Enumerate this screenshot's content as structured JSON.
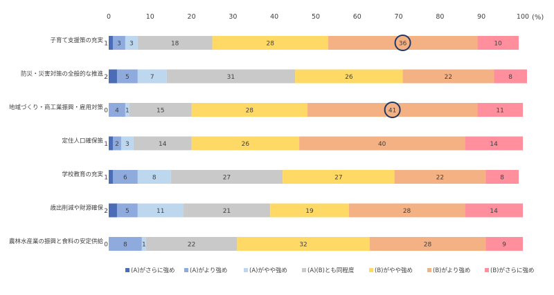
{
  "chart_data": {
    "type": "bar",
    "orientation": "horizontal",
    "stacked": true,
    "unit_label": "(%)",
    "xlim": [
      0,
      100
    ],
    "x_ticks": [
      0,
      10,
      20,
      30,
      40,
      50,
      60,
      70,
      80,
      90,
      100
    ],
    "grid": false,
    "legend_position": "bottom",
    "categories": [
      "子育て支援策の充実",
      "防災・災害対策の全般的な推進",
      "地域づくり・商工業振興・雇用対策",
      "定住人口確保策",
      "学校教育の充実",
      "歳出削減や財源確保",
      "農林水産業の振興と食料の安定供給"
    ],
    "series": [
      {
        "name": "(A)がさらに強め",
        "color": "#4a6db5",
        "values": [
          1,
          2,
          0,
          1,
          1,
          2,
          0
        ]
      },
      {
        "name": "(A)がより強め",
        "color": "#8faadc",
        "values": [
          3,
          5,
          4,
          2,
          6,
          5,
          8
        ]
      },
      {
        "name": "(A)がやや強め",
        "color": "#bdd7ee",
        "values": [
          3,
          7,
          1,
          3,
          8,
          11,
          1
        ]
      },
      {
        "name": "(A)(B)とも同程度",
        "color": "#c9c9c9",
        "values": [
          18,
          31,
          15,
          14,
          27,
          21,
          22
        ]
      },
      {
        "name": "(B)がやや強め",
        "color": "#ffd966",
        "values": [
          28,
          26,
          28,
          26,
          27,
          19,
          32
        ]
      },
      {
        "name": "(B)がより強め",
        "color": "#f4b183",
        "values": [
          36,
          22,
          41,
          40,
          22,
          28,
          28
        ]
      },
      {
        "name": "(B)がさらに強め",
        "color": "#ff8f9c",
        "values": [
          10,
          8,
          11,
          14,
          8,
          14,
          9
        ]
      }
    ],
    "label_display": [
      [
        "1",
        "3",
        "3",
        "18",
        "28",
        "36",
        "10"
      ],
      [
        "2",
        "5",
        "7",
        "31",
        "26",
        "22",
        "8"
      ],
      [
        "0",
        "4",
        "1",
        "15",
        "28",
        "41",
        "11"
      ],
      [
        "1",
        "2",
        "3",
        "14",
        "26",
        "40",
        "14"
      ],
      [
        "1",
        "6",
        "8",
        "27",
        "27",
        "22",
        "8"
      ],
      [
        "2",
        "5",
        "11",
        "21",
        "19",
        "28",
        "14"
      ],
      [
        "0",
        "8",
        "1",
        "22",
        "32",
        "28",
        "9"
      ]
    ],
    "highlighted": [
      {
        "category": "子育て支援策の充実",
        "series": "(B)がより強め",
        "value": 36
      },
      {
        "category": "地域づくり・商工業振興・雇用対策",
        "series": "(B)がより強め",
        "value": 41
      }
    ],
    "highlight_color": "#1f3864"
  }
}
